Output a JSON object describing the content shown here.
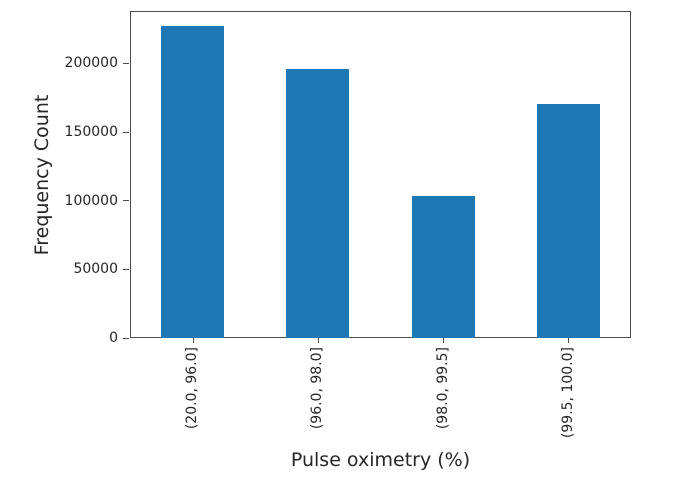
{
  "chart_data": {
    "type": "bar",
    "title": "",
    "xlabel": "Pulse oximetry (%)",
    "ylabel": "Frequency Count",
    "categories": [
      "(20.0, 96.0]",
      "(96.0, 98.0]",
      "(98.0, 99.5]",
      "(99.5, 100.0]"
    ],
    "values": [
      227000,
      196000,
      103000,
      170000
    ],
    "yticks": [
      0,
      50000,
      100000,
      150000,
      200000
    ],
    "ytick_labels": [
      "0",
      "50000",
      "100000",
      "150000",
      "200000"
    ],
    "ylim": [
      0,
      237800
    ],
    "xtick_rotation": 90,
    "grid": false,
    "legend_position": "none",
    "bar_color": "#1f77b4",
    "spine_color": "#4d4d4d",
    "text_color": "#262626",
    "background_color": "#ffffff"
  }
}
